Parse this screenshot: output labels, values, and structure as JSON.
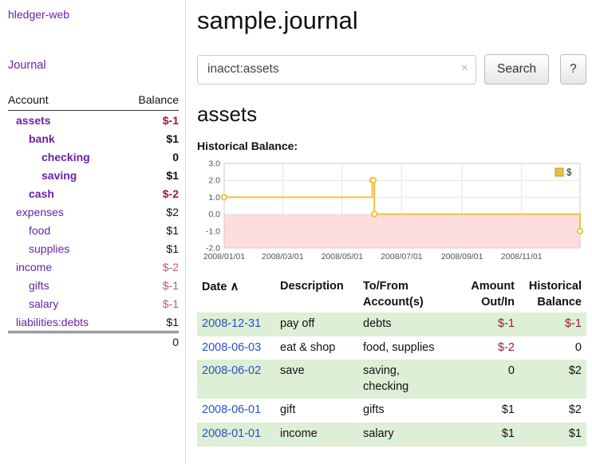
{
  "colors": {
    "link_purple": "#6a21a8",
    "link_blue": "#2b50c8",
    "negative_strong": "#a1153c",
    "negative_soft": "#bf5a6b",
    "row_stripe_green": "#ddefd5",
    "chart_line": "#edc240",
    "chart_negative_region": "#ffdddd"
  },
  "sidebar": {
    "app_title": "hledger-web",
    "journal_label": "Journal",
    "accounts_header": {
      "account": "Account",
      "balance": "Balance"
    },
    "accounts": [
      {
        "name": "assets",
        "balance": "$-1",
        "indent": 1
      },
      {
        "name": "bank",
        "balance": "$1",
        "indent": 2
      },
      {
        "name": "checking",
        "balance": "0",
        "indent": 3
      },
      {
        "name": "saving",
        "balance": "$1",
        "indent": 3
      },
      {
        "name": "cash",
        "balance": "$-2",
        "indent": 2
      },
      {
        "name": "expenses",
        "balance": "$2",
        "indent": 1
      },
      {
        "name": "food",
        "balance": "$1",
        "indent": 2
      },
      {
        "name": "supplies",
        "balance": "$1",
        "indent": 2
      },
      {
        "name": "income",
        "balance": "$-2",
        "indent": 1
      },
      {
        "name": "gifts",
        "balance": "$-1",
        "indent": 2
      },
      {
        "name": "salary",
        "balance": "$-1",
        "indent": 2
      },
      {
        "name": "liabilities:debts",
        "balance": "$1",
        "indent": 1
      }
    ],
    "total": "0"
  },
  "main": {
    "title": "sample.journal",
    "search": {
      "value": "inacct:assets",
      "clear_icon": "×",
      "button_label": "Search",
      "help_label": "?"
    },
    "account_heading": "assets",
    "chart_label": "Historical Balance:"
  },
  "chart_data": {
    "type": "line",
    "step": true,
    "title": "Historical Balance",
    "legend": [
      {
        "label": "$",
        "color": "#edc240"
      }
    ],
    "legend_position": "top-right",
    "grid": true,
    "x_ticks": [
      "2008/01/01",
      "2008/03/01",
      "2008/05/01",
      "2008/07/01",
      "2008/09/01",
      "2008/11/01"
    ],
    "y_ticks": [
      3.0,
      2.0,
      1.0,
      0.0,
      -1.0,
      -2.0
    ],
    "ylim": [
      -2,
      3
    ],
    "xlim": [
      "2008-01-01",
      "2008-12-31"
    ],
    "negative_region_color": "#ffdddd",
    "series": [
      {
        "name": "$",
        "color": "#edc240",
        "points": [
          [
            "2008-01-01",
            1
          ],
          [
            "2008-06-01",
            2
          ],
          [
            "2008-06-02",
            2
          ],
          [
            "2008-06-03",
            0
          ],
          [
            "2008-12-31",
            -1
          ]
        ]
      }
    ]
  },
  "register": {
    "headers": {
      "date": "Date",
      "description": "Description",
      "account": "To/From Account(s)",
      "amount": "Amount Out/In",
      "balance": "Historical Balance"
    },
    "sort_icon": "∧",
    "rows": [
      {
        "date": "2008-12-31",
        "description": "pay off",
        "accounts": "debts",
        "amount": "$-1",
        "balance": "$-1"
      },
      {
        "date": "2008-06-03",
        "description": "eat & shop",
        "accounts": "food, supplies",
        "amount": "$-2",
        "balance": "0"
      },
      {
        "date": "2008-06-02",
        "description": "save",
        "accounts": "saving, checking",
        "amount": "0",
        "balance": "$2"
      },
      {
        "date": "2008-06-01",
        "description": "gift",
        "accounts": "gifts",
        "amount": "$1",
        "balance": "$2"
      },
      {
        "date": "2008-01-01",
        "description": "income",
        "accounts": "salary",
        "amount": "$1",
        "balance": "$1"
      }
    ]
  }
}
